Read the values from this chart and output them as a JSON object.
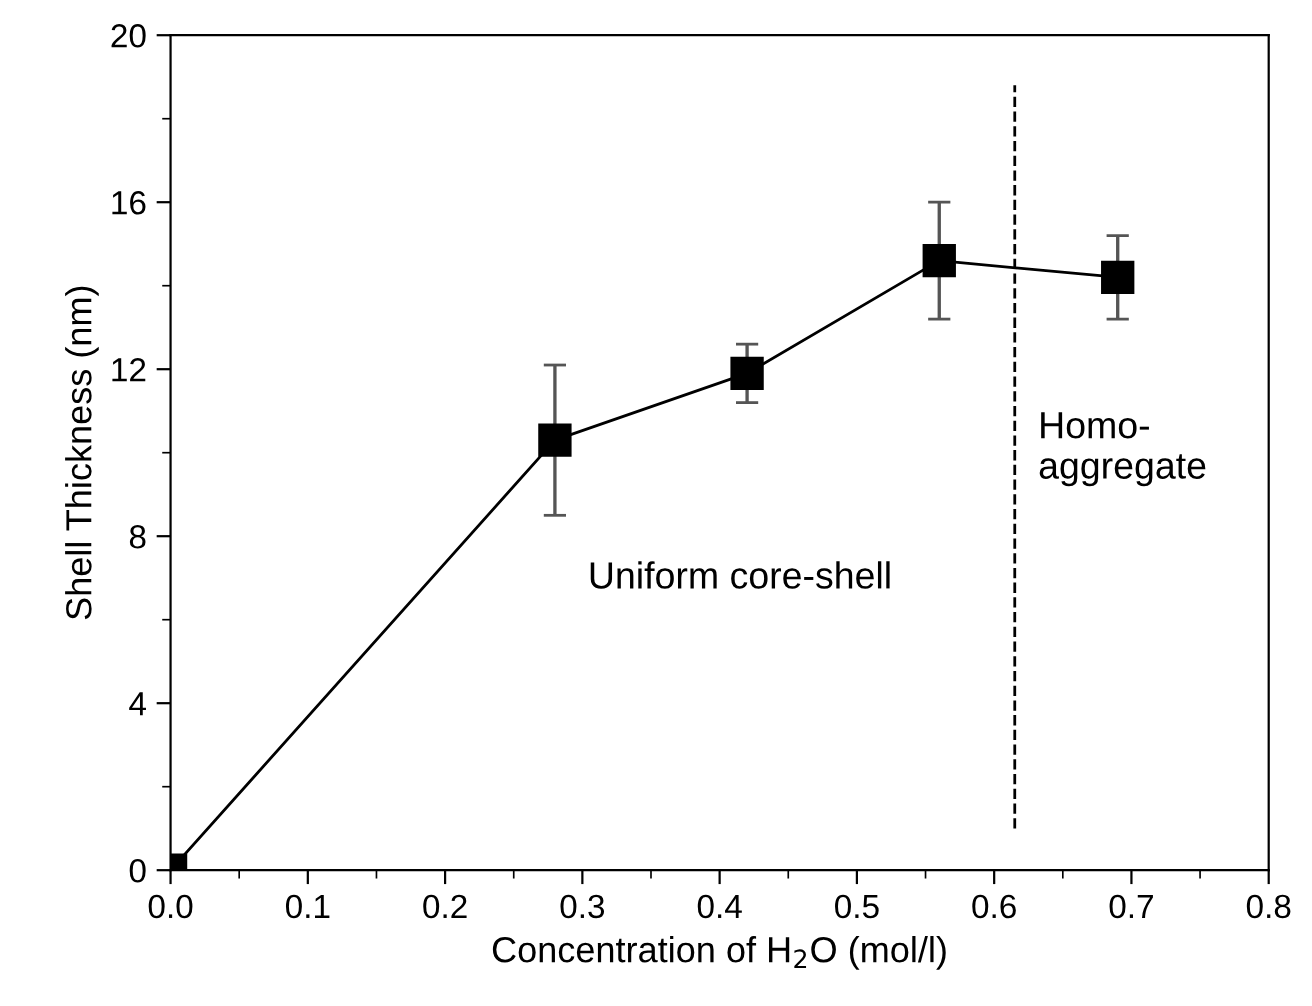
{
  "chart_data": {
    "type": "line",
    "xlabel": "Concentration of H$_{2}$O (mol/l)",
    "ylabel": "Shell Thickness (nm)",
    "x": [
      0,
      0.28,
      0.42,
      0.56,
      0.69
    ],
    "series": [
      {
        "color": "#000000",
        "values": [
          0,
          10.3,
          11.9,
          14.6,
          14.2
        ],
        "errors": [
          null,
          [
            8.5,
            12.1
          ],
          [
            11.2,
            12.6
          ],
          [
            13.2,
            16.0
          ],
          [
            13.2,
            15.2
          ]
        ]
      }
    ],
    "marker": "square",
    "line_style": "solid",
    "grid": false,
    "legend": false,
    "xlim": [
      0,
      0.8
    ],
    "xticks": [
      {
        "value": 0,
        "label": "0.0"
      },
      0.1,
      0.2,
      0.3,
      0.4,
      0.5,
      0.6,
      0.7,
      0.8
    ],
    "ylim": [
      0,
      20
    ],
    "yticks": [
      0,
      4,
      8,
      12,
      16,
      20
    ],
    "ref_lines": [
      {
        "axis": "x",
        "value": 0.615,
        "line_style": "dashed",
        "color": "#000000"
      }
    ],
    "annotations": [
      "Uniform core-shell",
      "Homo-\naggregate"
    ]
  }
}
